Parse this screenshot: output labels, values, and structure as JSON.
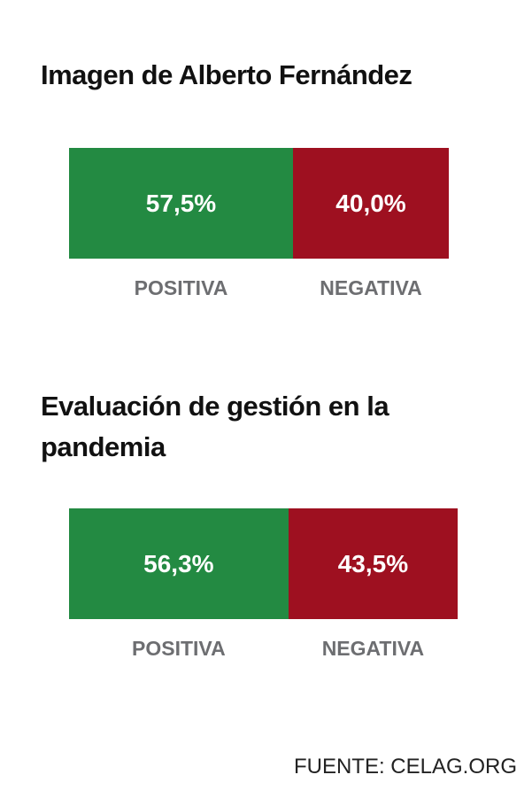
{
  "chart_data": [
    {
      "type": "stacked_bar",
      "title": "Imagen de Alberto Fernández",
      "xlim": [
        0,
        100
      ],
      "series": [
        {
          "name": "POSITIVA",
          "color": "#238a42",
          "values": [
            57.5
          ],
          "value_labels": [
            "57,5%"
          ]
        },
        {
          "name": "NEGATIVA",
          "color": "#9e1020",
          "values": [
            40.0
          ],
          "value_labels": [
            "40,0%"
          ]
        }
      ]
    },
    {
      "type": "stacked_bar",
      "title": "Evaluación de gestión en la pandemia",
      "xlim": [
        0,
        100
      ],
      "series": [
        {
          "name": "POSITIVA",
          "color": "#238a42",
          "values": [
            56.3
          ],
          "value_labels": [
            "56,3%"
          ]
        },
        {
          "name": "NEGATIVA",
          "color": "#9e1020",
          "values": [
            43.5
          ],
          "value_labels": [
            "43,5%"
          ]
        }
      ]
    }
  ],
  "source": "FUENTE: CELAG.ORG"
}
